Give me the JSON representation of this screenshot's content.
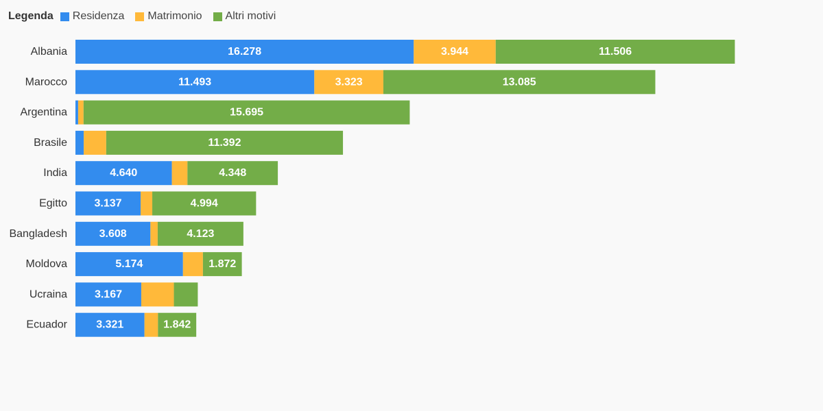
{
  "legend": {
    "title": "Legenda",
    "items": [
      {
        "label": "Residenza",
        "color": "#338cee"
      },
      {
        "label": "Matrimonio",
        "color": "#ffb93a"
      },
      {
        "label": "Altri motivi",
        "color": "#73ad48"
      }
    ]
  },
  "chart_data": {
    "type": "bar",
    "orientation": "horizontal",
    "stacked": true,
    "title": "",
    "xlabel": "",
    "ylabel": "",
    "xlim": [
      0,
      33000
    ],
    "grid": false,
    "legend_position": "top-left",
    "categories": [
      "Albania",
      "Marocco",
      "Argentina",
      "Brasile",
      "India",
      "Egitto",
      "Bangladesh",
      "Moldova",
      "Ucraina",
      "Ecuador"
    ],
    "series": [
      {
        "name": "Residenza",
        "color": "#338cee",
        "values": [
          16278,
          11493,
          130,
          400,
          4640,
          3137,
          3608,
          5174,
          3167,
          3321
        ],
        "labels": [
          "16.278",
          "11.493",
          "",
          "",
          "4.640",
          "3.137",
          "3.608",
          "5.174",
          "3.167",
          "3.321"
        ]
      },
      {
        "name": "Matrimonio",
        "color": "#ffb93a",
        "values": [
          3944,
          3323,
          260,
          1080,
          750,
          560,
          350,
          960,
          1570,
          650
        ],
        "labels": [
          "3.944",
          "3.323",
          "",
          "",
          "",
          "",
          "",
          "",
          "",
          ""
        ]
      },
      {
        "name": "Altri motivi",
        "color": "#73ad48",
        "values": [
          11506,
          13085,
          15695,
          11392,
          4348,
          4994,
          4123,
          1872,
          1150,
          1842
        ],
        "labels": [
          "11.506",
          "13.085",
          "15.695",
          "11.392",
          "4.348",
          "4.994",
          "4.123",
          "1.872",
          "",
          "1.842"
        ]
      }
    ]
  }
}
